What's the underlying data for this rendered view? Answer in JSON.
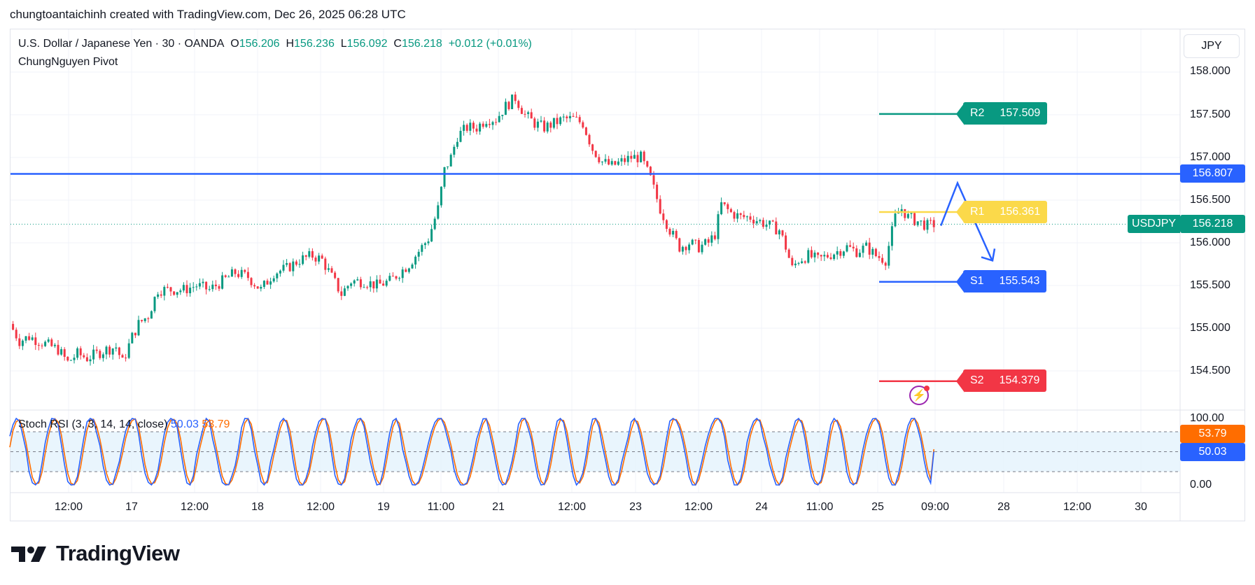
{
  "header": {
    "caption": "chungtoantaichinh created with TradingView.com, Dec 26, 2025 06:28 UTC"
  },
  "legend": {
    "symbol": "U.S. Dollar / Japanese Yen · 30 · OANDA",
    "o_label": "O",
    "o_value": "156.206",
    "h_label": "H",
    "h_value": "156.236",
    "l_label": "L",
    "l_value": "156.092",
    "c_label": "C",
    "c_value": "156.218",
    "change": "+0.012 (+0.01%)",
    "indicator": "ChungNguyen Pivot"
  },
  "currency_button": "JPY",
  "stoch": {
    "label": "Stoch RSI (3, 3, 14, 14, close)",
    "k_value": "50.03",
    "d_value": "53.79",
    "k_color": "#2962ff",
    "d_color": "#ff6d00",
    "ticks": [
      "100.00",
      "0.00"
    ]
  },
  "price_axis": {
    "ticks": [
      "158.000",
      "157.500",
      "157.000",
      "156.500",
      "156.000",
      "155.500",
      "155.000",
      "154.500"
    ],
    "resistance_tag": "156.807",
    "symbol_tag": "USDJPY",
    "last_price_tag": "156.218"
  },
  "time_axis": [
    "12:00",
    "17",
    "12:00",
    "18",
    "12:00",
    "19",
    "11:00",
    "21",
    "12:00",
    "23",
    "12:00",
    "24",
    "11:00",
    "25",
    "09:00",
    "28",
    "12:00",
    "30"
  ],
  "pivots": [
    {
      "name": "R2",
      "value": "157.509",
      "color": "#089981"
    },
    {
      "name": "R1",
      "value": "156.361",
      "color": "#fbd94a"
    },
    {
      "name": "S1",
      "value": "155.543",
      "color": "#2962ff"
    },
    {
      "name": "S2",
      "value": "154.379",
      "color": "#f23645"
    }
  ],
  "colors": {
    "up": "#089981",
    "down": "#f23645",
    "horizontal_line": "#2962ff",
    "projection": "#2962ff"
  },
  "chart_data": {
    "type": "candlestick",
    "symbol": "USDJPY",
    "interval": "30",
    "source": "OANDA",
    "ylim": [
      154.0,
      158.2
    ],
    "y_ticks": [
      154.5,
      155.0,
      155.5,
      156.0,
      156.5,
      157.0,
      157.5,
      158.0
    ],
    "horizontal_line": 156.807,
    "last_price": 156.218,
    "close_path": [
      [
        0,
        155.05
      ],
      [
        3,
        154.85
      ],
      [
        6,
        154.9
      ],
      [
        9,
        154.85
      ],
      [
        12,
        154.8
      ],
      [
        15,
        154.75
      ],
      [
        18,
        154.6
      ],
      [
        21,
        154.7
      ],
      [
        24,
        154.65
      ],
      [
        27,
        154.7
      ],
      [
        30,
        154.75
      ],
      [
        33,
        154.78
      ],
      [
        35,
        154.6
      ],
      [
        38,
        154.9
      ],
      [
        40,
        155.05
      ],
      [
        43,
        155.15
      ],
      [
        46,
        155.45
      ],
      [
        50,
        155.45
      ],
      [
        54,
        155.45
      ],
      [
        58,
        155.5
      ],
      [
        62,
        155.45
      ],
      [
        66,
        155.55
      ],
      [
        70,
        155.65
      ],
      [
        74,
        155.6
      ],
      [
        78,
        155.45
      ],
      [
        82,
        155.65
      ],
      [
        86,
        155.7
      ],
      [
        90,
        155.8
      ],
      [
        94,
        155.85
      ],
      [
        97,
        155.8
      ],
      [
        100,
        155.6
      ],
      [
        103,
        155.4
      ],
      [
        106,
        155.55
      ],
      [
        110,
        155.55
      ],
      [
        114,
        155.5
      ],
      [
        118,
        155.55
      ],
      [
        121,
        155.65
      ],
      [
        124,
        155.75
      ],
      [
        127,
        155.9
      ],
      [
        130,
        156.05
      ],
      [
        133,
        156.4
      ],
      [
        135,
        156.85
      ],
      [
        137,
        157.0
      ],
      [
        139,
        157.25
      ],
      [
        142,
        157.35
      ],
      [
        145,
        157.35
      ],
      [
        148,
        157.45
      ],
      [
        151,
        157.45
      ],
      [
        154,
        157.6
      ],
      [
        157,
        157.7
      ],
      [
        160,
        157.5
      ],
      [
        163,
        157.4
      ],
      [
        166,
        157.35
      ],
      [
        169,
        157.4
      ],
      [
        172,
        157.45
      ],
      [
        175,
        157.45
      ],
      [
        178,
        157.4
      ],
      [
        181,
        157.1
      ],
      [
        184,
        156.95
      ],
      [
        187,
        156.9
      ],
      [
        190,
        156.95
      ],
      [
        193,
        157.0
      ],
      [
        196,
        157.0
      ],
      [
        199,
        156.75
      ],
      [
        202,
        156.4
      ],
      [
        205,
        156.15
      ],
      [
        208,
        155.95
      ],
      [
        211,
        156.0
      ],
      [
        214,
        155.95
      ],
      [
        217,
        156.0
      ],
      [
        219,
        156.1
      ],
      [
        221,
        156.45
      ],
      [
        224,
        156.35
      ],
      [
        227,
        156.3
      ],
      [
        230,
        156.3
      ],
      [
        233,
        156.25
      ],
      [
        236,
        156.2
      ],
      [
        239,
        156.15
      ],
      [
        241,
        155.95
      ],
      [
        243,
        155.7
      ],
      [
        245,
        155.8
      ],
      [
        248,
        155.85
      ],
      [
        251,
        155.8
      ],
      [
        254,
        155.85
      ],
      [
        257,
        155.9
      ],
      [
        260,
        155.95
      ],
      [
        263,
        155.9
      ],
      [
        266,
        155.95
      ],
      [
        269,
        155.85
      ],
      [
        272,
        155.8
      ],
      [
        275,
        156.3
      ],
      [
        277,
        156.4
      ],
      [
        279,
        156.3
      ],
      [
        282,
        156.25
      ],
      [
        285,
        156.2
      ],
      [
        287,
        156.218
      ]
    ],
    "pivot_levels": {
      "R2": 157.509,
      "R1": 156.361,
      "S1": 155.543,
      "S2": 154.379
    },
    "projection": {
      "high": 156.7,
      "low": 155.8
    },
    "stoch_rsi": {
      "params": "3, 3, 14, 14, close",
      "k_last": 50.03,
      "d_last": 53.79,
      "ylim": [
        0,
        100
      ],
      "bands": [
        80,
        50,
        20
      ]
    },
    "x_tick_labels": [
      "12:00",
      "17",
      "12:00",
      "18",
      "12:00",
      "19",
      "11:00",
      "21",
      "12:00",
      "23",
      "12:00",
      "24",
      "11:00",
      "25",
      "09:00",
      "28",
      "12:00",
      "30"
    ]
  }
}
